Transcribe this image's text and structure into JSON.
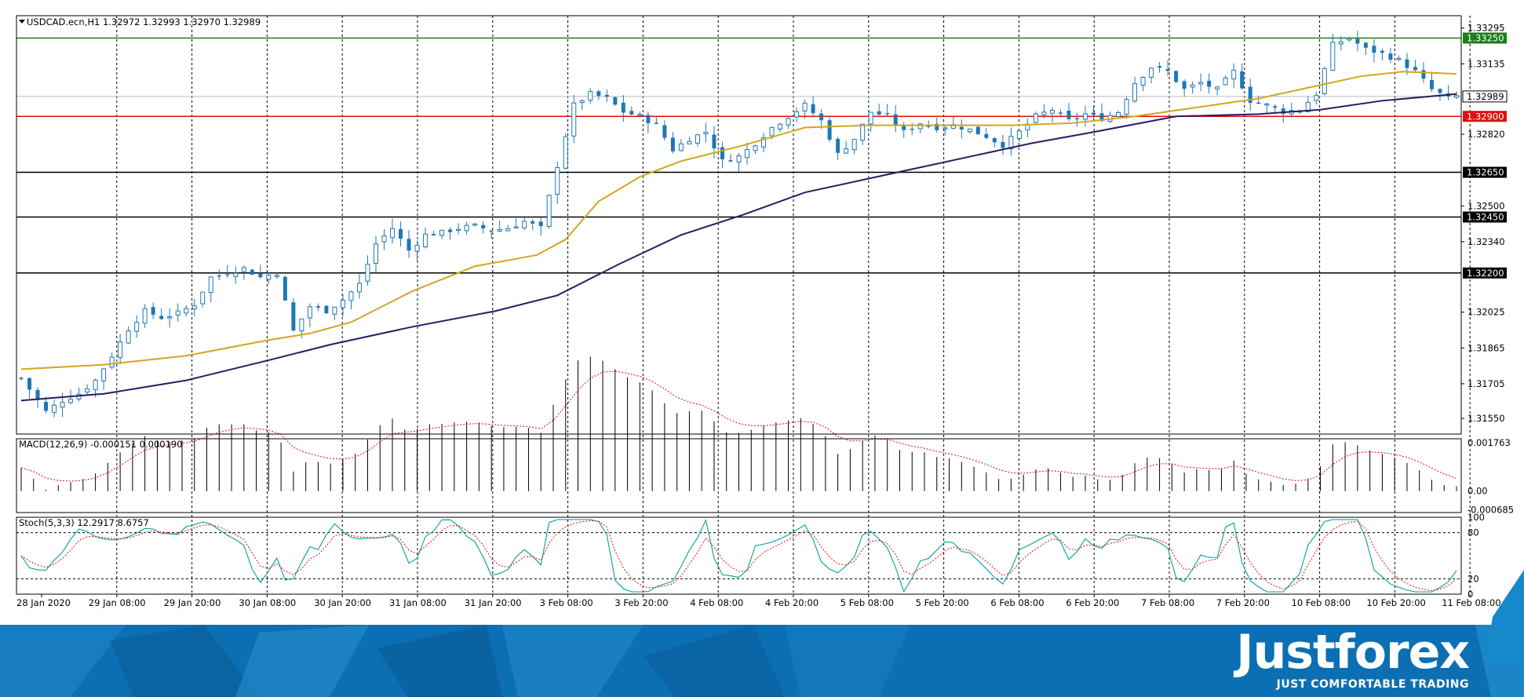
{
  "header": {
    "symbol_line": "USDCAD.ecn,H1  1.32972 1.32993 1.32970 1.32989",
    "macd_label": "MACD(12,26,9) -0.000151 0.000190",
    "stoch_label": "Stoch(5,3,3) 12.2917 8.6757"
  },
  "brand": {
    "name": "Justforex",
    "tagline": "JUST COMFORTABLE TRADING"
  },
  "colors": {
    "candle": "#1f77b4",
    "ma_fast": "#d4a520",
    "ma_slow": "#2d1b63",
    "resistance_green": "#1a7f1a",
    "support_red": "#e01010",
    "banner": "#0f73b7"
  },
  "chart_data": {
    "type": "candlestick",
    "symbol": "USDCAD.ecn",
    "timeframe": "H1",
    "price_axis": {
      "ylim": [
        1.3148,
        1.3335
      ],
      "ticks": [
        "1.33295",
        "1.33135",
        "1.32820",
        "1.32500",
        "1.32340",
        "1.32025",
        "1.31865",
        "1.31705",
        "1.31550"
      ]
    },
    "x_labels": [
      "28 Jan 2020",
      "29 Jan 08:00",
      "29 Jan 20:00",
      "30 Jan 08:00",
      "30 Jan 20:00",
      "31 Jan 08:00",
      "31 Jan 20:00",
      "3 Feb 08:00",
      "3 Feb 20:00",
      "4 Feb 08:00",
      "4 Feb 20:00",
      "5 Feb 08:00",
      "5 Feb 20:00",
      "6 Feb 08:00",
      "6 Feb 20:00",
      "7 Feb 08:00",
      "7 Feb 20:00",
      "10 Feb 08:00",
      "10 Feb 20:00",
      "11 Feb 08:00"
    ],
    "current_price": {
      "value": 1.32989,
      "label": "1.32989"
    },
    "horizontal_levels": [
      {
        "value": 1.3325,
        "label": "1.33250",
        "color": "green"
      },
      {
        "value": 1.329,
        "label": "1.32900",
        "color": "red"
      },
      {
        "value": 1.3265,
        "label": "1.32650",
        "color": "black"
      },
      {
        "value": 1.3245,
        "label": "1.32450",
        "color": "black"
      },
      {
        "value": 1.322,
        "label": "1.32200",
        "color": "black"
      }
    ],
    "close_path": [
      [
        0,
        1.3173
      ],
      [
        6,
        1.3158
      ],
      [
        10,
        1.3163
      ],
      [
        14,
        1.3166
      ],
      [
        18,
        1.3172
      ],
      [
        22,
        1.3183
      ],
      [
        26,
        1.3195
      ],
      [
        30,
        1.3203
      ],
      [
        34,
        1.32
      ],
      [
        38,
        1.3202
      ],
      [
        42,
        1.3206
      ],
      [
        46,
        1.3218
      ],
      [
        50,
        1.322
      ],
      [
        54,
        1.3222
      ],
      [
        58,
        1.3218
      ],
      [
        62,
        1.322
      ],
      [
        66,
        1.3194
      ],
      [
        70,
        1.3205
      ],
      [
        74,
        1.3203
      ],
      [
        78,
        1.3208
      ],
      [
        82,
        1.3215
      ],
      [
        86,
        1.3233
      ],
      [
        90,
        1.324
      ],
      [
        94,
        1.323
      ],
      [
        98,
        1.3237
      ],
      [
        102,
        1.3238
      ],
      [
        106,
        1.324
      ],
      [
        110,
        1.3241
      ],
      [
        114,
        1.3239
      ],
      [
        118,
        1.324
      ],
      [
        122,
        1.3243
      ],
      [
        126,
        1.324
      ],
      [
        130,
        1.3268
      ],
      [
        134,
        1.3295
      ],
      [
        138,
        1.33
      ],
      [
        142,
        1.3298
      ],
      [
        146,
        1.3292
      ],
      [
        150,
        1.329
      ],
      [
        154,
        1.3286
      ],
      [
        158,
        1.3275
      ],
      [
        162,
        1.328
      ],
      [
        166,
        1.3283
      ],
      [
        170,
        1.327
      ],
      [
        174,
        1.3272
      ],
      [
        178,
        1.3278
      ],
      [
        182,
        1.3285
      ],
      [
        186,
        1.329
      ],
      [
        190,
        1.3295
      ],
      [
        194,
        1.3288
      ],
      [
        198,
        1.3273
      ],
      [
        202,
        1.328
      ],
      [
        206,
        1.3292
      ],
      [
        210,
        1.329
      ],
      [
        214,
        1.3283
      ],
      [
        218,
        1.3287
      ],
      [
        222,
        1.3285
      ],
      [
        226,
        1.3286
      ],
      [
        230,
        1.3284
      ],
      [
        234,
        1.3281
      ],
      [
        238,
        1.3277
      ],
      [
        242,
        1.3283
      ],
      [
        246,
        1.329
      ],
      [
        250,
        1.3293
      ],
      [
        254,
        1.3288
      ],
      [
        258,
        1.3291
      ],
      [
        262,
        1.3289
      ],
      [
        266,
        1.3292
      ],
      [
        270,
        1.3305
      ],
      [
        274,
        1.3312
      ],
      [
        278,
        1.331
      ],
      [
        282,
        1.3302
      ],
      [
        286,
        1.3305
      ],
      [
        290,
        1.3302
      ],
      [
        294,
        1.331
      ],
      [
        298,
        1.3297
      ],
      [
        302,
        1.3295
      ],
      [
        306,
        1.3292
      ],
      [
        310,
        1.3293
      ],
      [
        314,
        1.33
      ],
      [
        318,
        1.3322
      ],
      [
        322,
        1.3325
      ],
      [
        326,
        1.332
      ],
      [
        330,
        1.3318
      ],
      [
        334,
        1.3315
      ],
      [
        338,
        1.331
      ],
      [
        342,
        1.3302
      ],
      [
        346,
        1.3298
      ],
      [
        348,
        1.3299
      ]
    ],
    "ma_fast_path": [
      [
        0,
        1.3177
      ],
      [
        20,
        1.3179
      ],
      [
        40,
        1.3183
      ],
      [
        60,
        1.319
      ],
      [
        70,
        1.3193
      ],
      [
        80,
        1.3198
      ],
      [
        95,
        1.3212
      ],
      [
        110,
        1.3223
      ],
      [
        125,
        1.3228
      ],
      [
        132,
        1.3235
      ],
      [
        140,
        1.3252
      ],
      [
        150,
        1.3263
      ],
      [
        160,
        1.327
      ],
      [
        175,
        1.3277
      ],
      [
        190,
        1.3285
      ],
      [
        205,
        1.3286
      ],
      [
        220,
        1.3286
      ],
      [
        240,
        1.3286
      ],
      [
        255,
        1.3287
      ],
      [
        270,
        1.329
      ],
      [
        285,
        1.3294
      ],
      [
        300,
        1.3298
      ],
      [
        315,
        1.3304
      ],
      [
        325,
        1.3308
      ],
      [
        335,
        1.331
      ],
      [
        348,
        1.3309
      ]
    ],
    "ma_slow_path": [
      [
        0,
        1.3163
      ],
      [
        20,
        1.3166
      ],
      [
        40,
        1.3172
      ],
      [
        60,
        1.3181
      ],
      [
        75,
        1.3188
      ],
      [
        95,
        1.3196
      ],
      [
        115,
        1.3203
      ],
      [
        130,
        1.321
      ],
      [
        145,
        1.3224
      ],
      [
        160,
        1.3237
      ],
      [
        175,
        1.3246
      ],
      [
        190,
        1.3256
      ],
      [
        210,
        1.3264
      ],
      [
        230,
        1.3272
      ],
      [
        245,
        1.3278
      ],
      [
        260,
        1.3283
      ],
      [
        280,
        1.329
      ],
      [
        300,
        1.3291
      ],
      [
        315,
        1.3293
      ],
      [
        330,
        1.3297
      ],
      [
        348,
        1.33
      ]
    ],
    "macd": {
      "ylim": [
        -0.00078,
        0.0019
      ],
      "ticks": [
        "0.001763",
        "0.00",
        "-0.000685"
      ],
      "signal_color": "#e01010"
    },
    "stoch": {
      "ylim": [
        0,
        100
      ],
      "ticks": [
        "100",
        "80",
        "20",
        "0"
      ],
      "main_color": "#1aa6a6",
      "signal_color": "#e01010"
    }
  }
}
